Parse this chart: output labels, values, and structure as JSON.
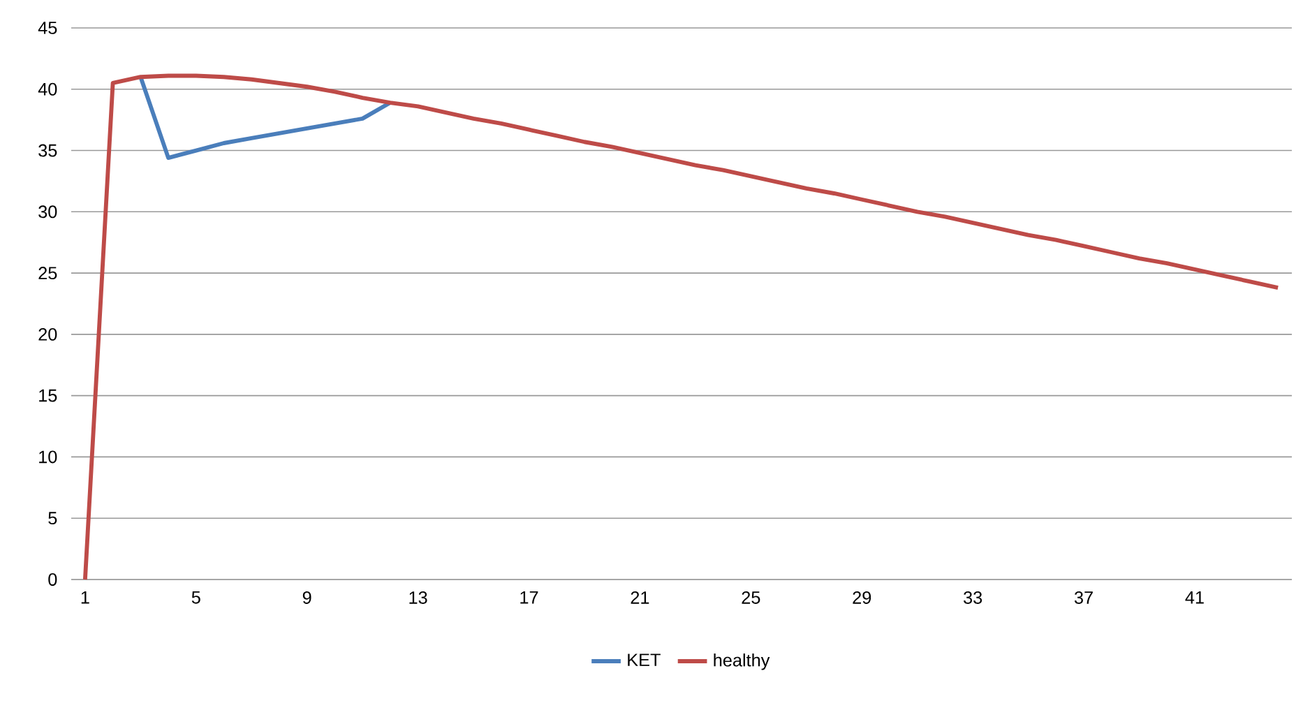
{
  "chart_data": {
    "type": "line",
    "categories": [
      "1",
      null,
      null,
      null,
      "5",
      null,
      null,
      null,
      "9",
      null,
      null,
      null,
      "13",
      null,
      null,
      null,
      "17",
      null,
      null,
      null,
      "21",
      null,
      null,
      null,
      "25",
      null,
      null,
      null,
      "29",
      null,
      null,
      null,
      "33",
      null,
      null,
      null,
      "37",
      null,
      null,
      null,
      "41",
      null,
      null,
      null
    ],
    "series": [
      {
        "name": "KET",
        "color": "#4a7ebb",
        "values": [
          null,
          null,
          41.0,
          34.4,
          35.0,
          35.6,
          36.0,
          36.4,
          36.8,
          37.2,
          37.6,
          38.9,
          null,
          null,
          null,
          null,
          null,
          null,
          null,
          null,
          null,
          null,
          null,
          null,
          null,
          null,
          null,
          null,
          null,
          null,
          null,
          null,
          null,
          null,
          null,
          null,
          null,
          null,
          null,
          null,
          null,
          null,
          null,
          null
        ]
      },
      {
        "name": "healthy",
        "color": "#be4b48",
        "values": [
          0,
          40.5,
          41.0,
          41.1,
          41.1,
          41.0,
          40.8,
          40.5,
          40.2,
          39.8,
          39.3,
          38.9,
          38.6,
          38.1,
          37.6,
          37.2,
          36.7,
          36.2,
          35.7,
          35.3,
          34.8,
          34.3,
          33.8,
          33.4,
          32.9,
          32.4,
          31.9,
          31.5,
          31.0,
          30.5,
          30.0,
          29.6,
          29.1,
          28.6,
          28.1,
          27.7,
          27.2,
          26.7,
          26.2,
          25.8,
          25.3,
          24.8,
          24.3,
          23.8
        ]
      }
    ],
    "ylim": [
      0,
      45
    ],
    "yticks": [
      0,
      5,
      10,
      15,
      20,
      25,
      30,
      35,
      40,
      45
    ],
    "grid": "y",
    "legend": "bottom",
    "marker": "none",
    "line_style": "solid"
  }
}
